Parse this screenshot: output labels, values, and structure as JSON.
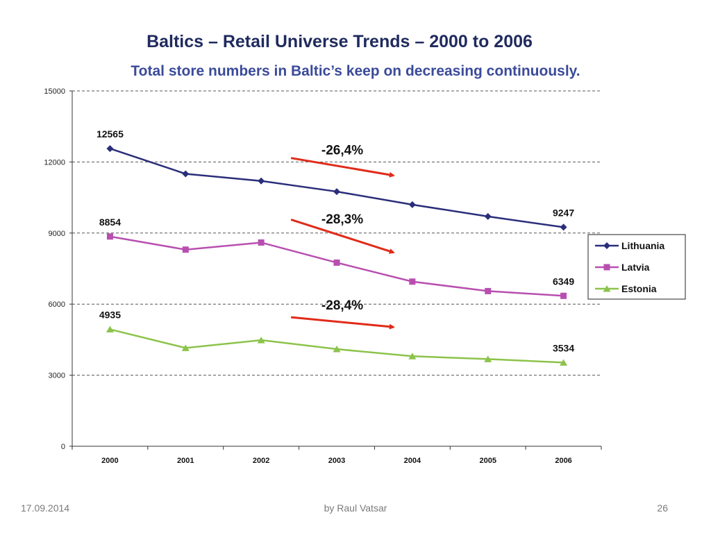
{
  "title": "Baltics – Retail Universe Trends – 2000 to 2006",
  "subtitle": "Total store numbers in Baltic’s keep on decreasing continuously.",
  "footer": {
    "date": "17.09.2014",
    "author": "by Raul Vatsar",
    "page": "26"
  },
  "chart_data": {
    "type": "line",
    "x": [
      "2000",
      "2001",
      "2002",
      "2003",
      "2004",
      "2005",
      "2006"
    ],
    "ylim": [
      0,
      15000
    ],
    "yticks": [
      0,
      3000,
      6000,
      9000,
      12000,
      15000
    ],
    "grid": "horizontal dashed",
    "legend_position": "right",
    "series": [
      {
        "name": "Lithuania",
        "color": "#2a2e7a",
        "marker": "diamond",
        "values": [
          12565,
          11500,
          11200,
          10750,
          10200,
          9700,
          9247
        ]
      },
      {
        "name": "Latvia",
        "color": "#b84fb0",
        "marker": "square",
        "values": [
          8854,
          8300,
          8600,
          7750,
          6950,
          6550,
          6349
        ]
      },
      {
        "name": "Estonia",
        "color": "#8cc34a",
        "marker": "triangle",
        "values": [
          4935,
          4150,
          4480,
          4100,
          3800,
          3680,
          3534
        ]
      }
    ],
    "data_labels": [
      {
        "series": "Lithuania",
        "x": "2000",
        "text": "12565"
      },
      {
        "series": "Lithuania",
        "x": "2006",
        "text": "9247"
      },
      {
        "series": "Latvia",
        "x": "2000",
        "text": "8854"
      },
      {
        "series": "Latvia",
        "x": "2006",
        "text": "6349"
      },
      {
        "series": "Estonia",
        "x": "2000",
        "text": "4935"
      },
      {
        "series": "Estonia",
        "x": "2006",
        "text": "3534"
      }
    ],
    "annotations": [
      {
        "text": "-26,4%",
        "series": "Lithuania",
        "color": "#e02b1a"
      },
      {
        "text": "-28,3%",
        "series": "Latvia",
        "color": "#e02b1a"
      },
      {
        "text": "-28,4%",
        "series": "Estonia",
        "color": "#e02b1a"
      }
    ]
  }
}
